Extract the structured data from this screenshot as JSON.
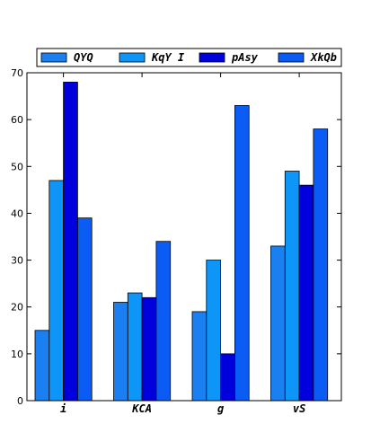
{
  "chart_data": {
    "type": "bar",
    "categories": [
      "i",
      "KCA",
      "g",
      "vS"
    ],
    "series": [
      {
        "name": "QYQ",
        "values": [
          15,
          21,
          19,
          33
        ],
        "color": "#1a7ff0"
      },
      {
        "name": "KqY I",
        "values": [
          47,
          23,
          30,
          49
        ],
        "color": "#0d95f7"
      },
      {
        "name": "pAsy",
        "values": [
          68,
          22,
          10,
          46
        ],
        "color": "#0000dd"
      },
      {
        "name": "XkQb",
        "values": [
          39,
          34,
          63,
          58
        ],
        "color": "#0a5cf5"
      }
    ],
    "title": "",
    "xlabel": "",
    "ylabel": "",
    "ylim": [
      0,
      70
    ],
    "yticks": [
      0,
      10,
      20,
      30,
      40,
      50,
      60,
      70
    ],
    "grid": false,
    "legend_position": "top-center"
  }
}
